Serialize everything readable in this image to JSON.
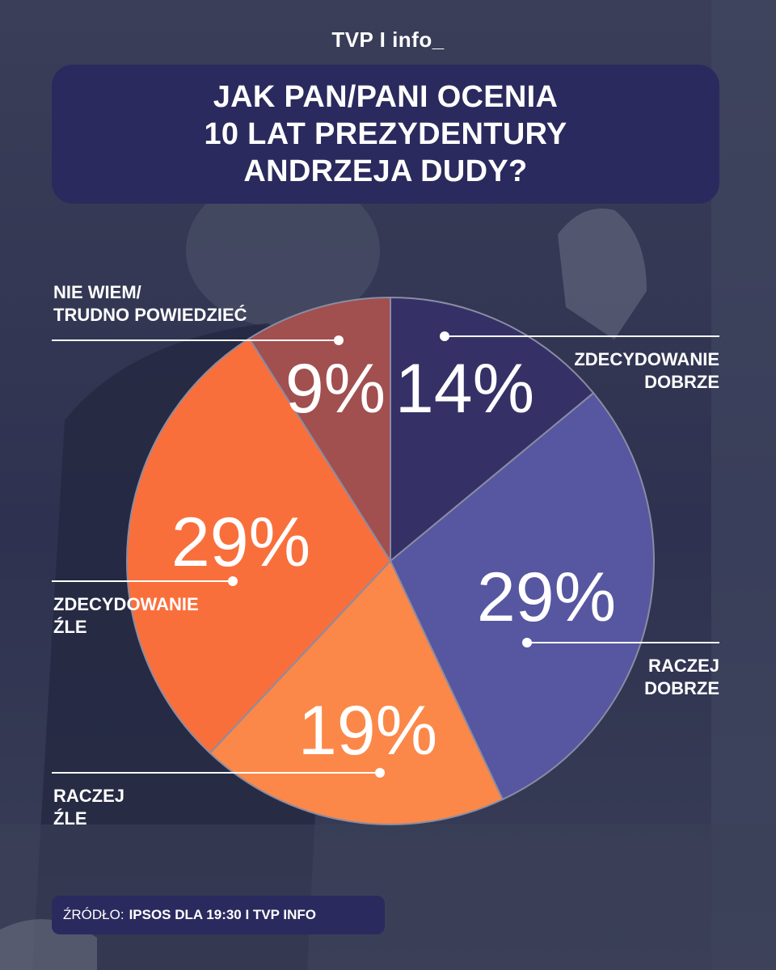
{
  "header": {
    "logo": "TVP I info_"
  },
  "title": {
    "lines": [
      "JAK PAN/PANI OCENIA",
      "10 LAT PREZYDENTURY",
      "ANDRZEJA DUDY?"
    ]
  },
  "source": {
    "label": "ŹRÓDŁO:",
    "text": "IPSOS DLA 19:30 I TVP INFO"
  },
  "chart_data": {
    "type": "pie",
    "title": "JAK PAN/PANI OCENIA 10 LAT PREZYDENTURY ANDRZEJA DUDY?",
    "start_angle_deg": 0,
    "direction": "clockwise",
    "slices": [
      {
        "label_lines": [
          "ZDECYDOWANIE",
          "DOBRZE"
        ],
        "value": 14,
        "display": "14%",
        "color": "#353166"
      },
      {
        "label_lines": [
          "RACZEJ",
          "DOBRZE"
        ],
        "value": 29,
        "display": "29%",
        "color": "#5756a1"
      },
      {
        "label_lines": [
          "RACZEJ",
          "ŹLE"
        ],
        "value": 19,
        "display": "19%",
        "color": "#fb8848"
      },
      {
        "label_lines": [
          "ZDECYDOWANIE",
          "ŹLE"
        ],
        "value": 29,
        "display": "29%",
        "color": "#f96f3c"
      },
      {
        "label_lines": [
          "NIE WIEM/",
          "TRUDNO POWIEDZIEĆ"
        ],
        "value": 9,
        "display": "9%",
        "color": "#a14f4f"
      }
    ]
  }
}
